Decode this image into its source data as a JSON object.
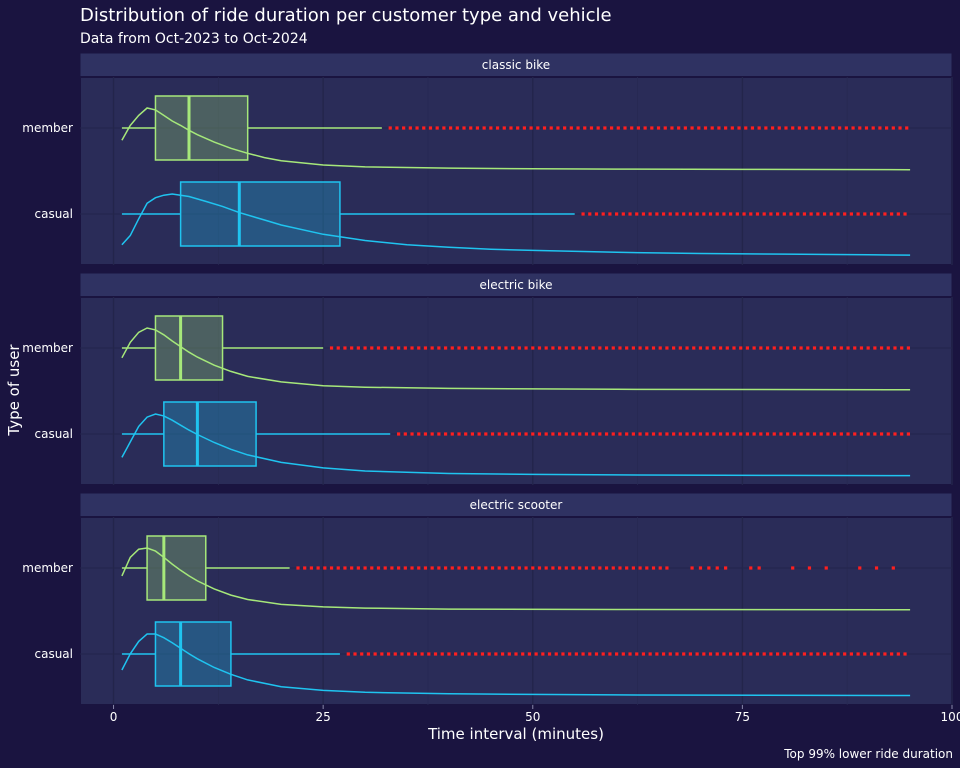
{
  "chart_data": {
    "type": "boxplot",
    "title": "Distribution of ride duration per customer type and vehicle",
    "subtitle": "Data from Oct-2023 to Oct-2024",
    "xlabel": "Time interval (minutes)",
    "ylabel": "Type of user",
    "caption": "Top 99% lower ride duration",
    "xlim": [
      -4,
      100
    ],
    "xticks": [
      0,
      25,
      50,
      75,
      100
    ],
    "grid": true,
    "colors": {
      "background": "#1a1440",
      "panel": "#2a2c58",
      "strip": "#2f3262",
      "member": "#a6e87a",
      "casual": "#1fc4f0",
      "outlier": "#ff1f1f",
      "text": "#ffffff"
    },
    "categories": [
      "member",
      "casual"
    ],
    "panels": [
      {
        "label": "classic bike",
        "groups": [
          {
            "category": "member",
            "whisker_low": 1,
            "q1": 5,
            "median": 9,
            "q3": 16,
            "whisker_high": 32,
            "outliers_from": 33,
            "outliers_to": 95,
            "density": [
              [
                1,
                0.48
              ],
              [
                2,
                0.72
              ],
              [
                3,
                0.88
              ],
              [
                4,
                1.0
              ],
              [
                5,
                0.97
              ],
              [
                6,
                0.88
              ],
              [
                7,
                0.79
              ],
              [
                8,
                0.72
              ],
              [
                9,
                0.64
              ],
              [
                10,
                0.57
              ],
              [
                12,
                0.45
              ],
              [
                14,
                0.35
              ],
              [
                16,
                0.27
              ],
              [
                18,
                0.2
              ],
              [
                20,
                0.15
              ],
              [
                25,
                0.08
              ],
              [
                30,
                0.05
              ],
              [
                40,
                0.03
              ],
              [
                50,
                0.02
              ],
              [
                60,
                0.015
              ],
              [
                75,
                0.01
              ],
              [
                95,
                0.005
              ]
            ]
          },
          {
            "category": "casual",
            "whisker_low": 1,
            "q1": 8,
            "median": 15,
            "q3": 27,
            "whisker_high": 55,
            "outliers_from": 56,
            "outliers_to": 95,
            "density": [
              [
                1,
                0.18
              ],
              [
                2,
                0.33
              ],
              [
                3,
                0.6
              ],
              [
                4,
                0.85
              ],
              [
                5,
                0.94
              ],
              [
                6,
                0.98
              ],
              [
                7,
                1.0
              ],
              [
                9,
                0.96
              ],
              [
                11,
                0.88
              ],
              [
                13,
                0.8
              ],
              [
                15,
                0.7
              ],
              [
                18,
                0.58
              ],
              [
                20,
                0.5
              ],
              [
                25,
                0.35
              ],
              [
                30,
                0.25
              ],
              [
                35,
                0.18
              ],
              [
                40,
                0.14
              ],
              [
                45,
                0.11
              ],
              [
                50,
                0.09
              ],
              [
                60,
                0.06
              ],
              [
                70,
                0.04
              ],
              [
                80,
                0.03
              ],
              [
                90,
                0.02
              ],
              [
                95,
                0.015
              ]
            ]
          }
        ]
      },
      {
        "label": "electric bike",
        "groups": [
          {
            "category": "member",
            "whisker_low": 1,
            "q1": 5,
            "median": 8,
            "q3": 13,
            "whisker_high": 25,
            "outliers_from": 26,
            "outliers_to": 95,
            "density": [
              [
                1,
                0.52
              ],
              [
                2,
                0.77
              ],
              [
                3,
                0.93
              ],
              [
                4,
                1.0
              ],
              [
                5,
                0.97
              ],
              [
                6,
                0.89
              ],
              [
                7,
                0.79
              ],
              [
                8,
                0.7
              ],
              [
                9,
                0.61
              ],
              [
                10,
                0.53
              ],
              [
                12,
                0.4
              ],
              [
                14,
                0.3
              ],
              [
                16,
                0.22
              ],
              [
                20,
                0.13
              ],
              [
                25,
                0.07
              ],
              [
                30,
                0.045
              ],
              [
                40,
                0.025
              ],
              [
                60,
                0.012
              ],
              [
                95,
                0.004
              ]
            ]
          },
          {
            "category": "casual",
            "whisker_low": 1,
            "q1": 6,
            "median": 10,
            "q3": 17,
            "whisker_high": 33,
            "outliers_from": 34,
            "outliers_to": 95,
            "density": [
              [
                1,
                0.3
              ],
              [
                2,
                0.55
              ],
              [
                3,
                0.8
              ],
              [
                4,
                0.95
              ],
              [
                5,
                1.0
              ],
              [
                6,
                0.97
              ],
              [
                7,
                0.9
              ],
              [
                8,
                0.82
              ],
              [
                9,
                0.74
              ],
              [
                10,
                0.67
              ],
              [
                12,
                0.54
              ],
              [
                14,
                0.43
              ],
              [
                16,
                0.34
              ],
              [
                20,
                0.22
              ],
              [
                25,
                0.13
              ],
              [
                30,
                0.08
              ],
              [
                40,
                0.04
              ],
              [
                50,
                0.025
              ],
              [
                60,
                0.018
              ],
              [
                80,
                0.01
              ],
              [
                95,
                0.006
              ]
            ]
          }
        ]
      },
      {
        "label": "electric scooter",
        "groups": [
          {
            "category": "member",
            "whisker_low": 1,
            "q1": 4,
            "median": 6,
            "q3": 11,
            "whisker_high": 21,
            "outliers_from": 22,
            "outliers_to": 66,
            "outliers_extra": [
              69,
              70,
              71,
              72,
              73,
              76,
              77,
              81,
              83,
              85,
              89,
              91,
              93
            ],
            "density": [
              [
                1,
                0.55
              ],
              [
                2,
                0.85
              ],
              [
                3,
                0.98
              ],
              [
                4,
                1.0
              ],
              [
                5,
                0.95
              ],
              [
                6,
                0.85
              ],
              [
                7,
                0.74
              ],
              [
                8,
                0.64
              ],
              [
                9,
                0.55
              ],
              [
                10,
                0.47
              ],
              [
                12,
                0.34
              ],
              [
                14,
                0.24
              ],
              [
                16,
                0.17
              ],
              [
                20,
                0.09
              ],
              [
                25,
                0.05
              ],
              [
                30,
                0.03
              ],
              [
                40,
                0.015
              ],
              [
                60,
                0.008
              ],
              [
                95,
                0.003
              ]
            ]
          },
          {
            "category": "casual",
            "whisker_low": 1,
            "q1": 5,
            "median": 8,
            "q3": 14,
            "whisker_high": 27,
            "outliers_from": 28,
            "outliers_to": 95,
            "density": [
              [
                1,
                0.42
              ],
              [
                2,
                0.68
              ],
              [
                3,
                0.88
              ],
              [
                4,
                1.0
              ],
              [
                5,
                1.0
              ],
              [
                6,
                0.94
              ],
              [
                7,
                0.86
              ],
              [
                8,
                0.77
              ],
              [
                9,
                0.68
              ],
              [
                10,
                0.6
              ],
              [
                12,
                0.46
              ],
              [
                14,
                0.35
              ],
              [
                16,
                0.26
              ],
              [
                20,
                0.15
              ],
              [
                25,
                0.09
              ],
              [
                30,
                0.06
              ],
              [
                40,
                0.035
              ],
              [
                60,
                0.018
              ],
              [
                95,
                0.008
              ]
            ]
          }
        ]
      }
    ]
  }
}
